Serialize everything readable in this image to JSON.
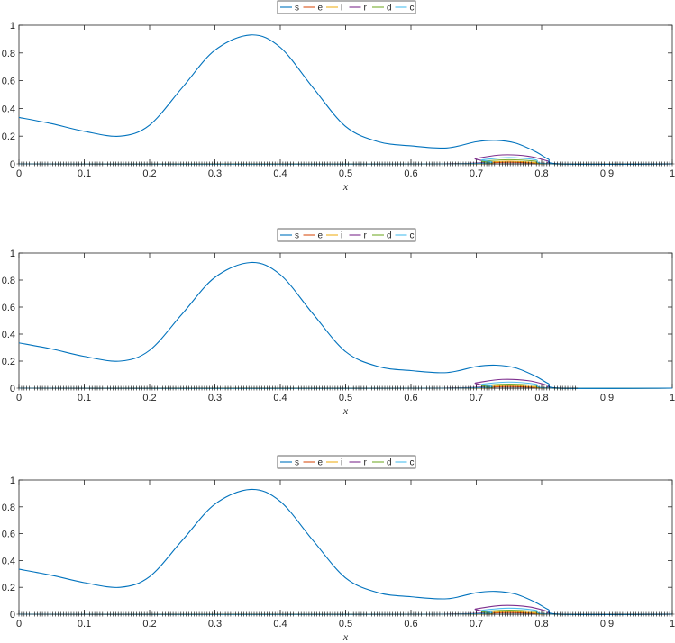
{
  "chart_data": [
    {
      "type": "line",
      "title": "",
      "xlabel": "x",
      "ylabel": "",
      "xlim": [
        0,
        1
      ],
      "ylim": [
        0,
        1
      ],
      "xticks": [
        "0",
        "0.1",
        "0.2",
        "0.3",
        "0.4",
        "0.5",
        "0.6",
        "0.7",
        "0.8",
        "0.9",
        "1"
      ],
      "yticks": [
        "0",
        "0.2",
        "0.4",
        "0.6",
        "0.8",
        "1"
      ],
      "grid": false,
      "legend_position": "top-center",
      "legend_orientation": "horizontal",
      "node_marker_range": [
        0,
        1
      ],
      "series": [
        {
          "name": "s",
          "color": "#0072BD",
          "x": [
            0,
            0.05,
            0.1,
            0.155,
            0.2,
            0.25,
            0.3,
            0.355,
            0.4,
            0.45,
            0.5,
            0.55,
            0.6,
            0.655,
            0.7,
            0.73,
            0.76,
            0.79,
            0.81,
            0.83,
            1.0
          ],
          "y": [
            0.335,
            0.29,
            0.235,
            0.2,
            0.28,
            0.55,
            0.82,
            0.93,
            0.84,
            0.55,
            0.27,
            0.16,
            0.13,
            0.115,
            0.16,
            0.17,
            0.15,
            0.09,
            0.035,
            0.0,
            0.0
          ]
        },
        {
          "name": "e",
          "color": "#D95319",
          "x": [
            0,
            0.65,
            0.7,
            0.75,
            0.8,
            0.82,
            1.0
          ],
          "y": [
            0,
            0,
            0.005,
            0.012,
            0.005,
            0,
            0
          ]
        },
        {
          "name": "i",
          "color": "#EDB120",
          "x": [
            0,
            0.66,
            0.71,
            0.75,
            0.79,
            0.81,
            1.0
          ],
          "y": [
            0,
            0,
            0.01,
            0.02,
            0.01,
            0,
            0
          ]
        },
        {
          "name": "r",
          "color": "#7E2F8E",
          "x": [
            0,
            0.65,
            0.7,
            0.74,
            0.78,
            0.81,
            0.825,
            1.0
          ],
          "y": [
            0,
            0,
            0.04,
            0.065,
            0.055,
            0.02,
            0,
            0
          ]
        },
        {
          "name": "d",
          "color": "#77AC30",
          "x": [
            0,
            0.66,
            0.71,
            0.75,
            0.79,
            0.815,
            1.0
          ],
          "y": [
            0,
            0,
            0.02,
            0.03,
            0.02,
            0,
            0
          ]
        },
        {
          "name": "c",
          "color": "#4DBEEE",
          "x": [
            0,
            0.66,
            0.71,
            0.75,
            0.79,
            0.815,
            1.0
          ],
          "y": [
            0,
            0,
            0.03,
            0.045,
            0.03,
            0,
            0
          ]
        }
      ]
    },
    {
      "type": "line",
      "title": "",
      "xlabel": "x",
      "ylabel": "",
      "xlim": [
        0,
        1
      ],
      "ylim": [
        0,
        1
      ],
      "xticks": [
        "0",
        "0.1",
        "0.2",
        "0.3",
        "0.4",
        "0.5",
        "0.6",
        "0.7",
        "0.8",
        "0.9",
        "1"
      ],
      "yticks": [
        "0",
        "0.2",
        "0.4",
        "0.6",
        "0.8",
        "1"
      ],
      "grid": false,
      "legend_position": "top-center",
      "legend_orientation": "horizontal",
      "node_marker_range": [
        0,
        0.855
      ],
      "series": [
        {
          "name": "s",
          "color": "#0072BD",
          "x": [
            0,
            0.05,
            0.1,
            0.155,
            0.2,
            0.25,
            0.3,
            0.355,
            0.4,
            0.45,
            0.5,
            0.55,
            0.6,
            0.655,
            0.7,
            0.73,
            0.76,
            0.79,
            0.81,
            0.83,
            1.0
          ],
          "y": [
            0.335,
            0.29,
            0.235,
            0.2,
            0.28,
            0.55,
            0.82,
            0.93,
            0.84,
            0.55,
            0.27,
            0.16,
            0.13,
            0.115,
            0.16,
            0.17,
            0.15,
            0.09,
            0.035,
            0.0,
            0.0
          ]
        },
        {
          "name": "e",
          "color": "#D95319",
          "x": [
            0,
            0.65,
            0.7,
            0.75,
            0.8,
            0.82,
            1.0
          ],
          "y": [
            0,
            0,
            0.005,
            0.012,
            0.005,
            0,
            0
          ]
        },
        {
          "name": "i",
          "color": "#EDB120",
          "x": [
            0,
            0.66,
            0.71,
            0.75,
            0.79,
            0.81,
            1.0
          ],
          "y": [
            0,
            0,
            0.01,
            0.02,
            0.01,
            0,
            0
          ]
        },
        {
          "name": "r",
          "color": "#7E2F8E",
          "x": [
            0,
            0.65,
            0.7,
            0.74,
            0.78,
            0.81,
            0.825,
            1.0
          ],
          "y": [
            0,
            0,
            0.04,
            0.065,
            0.055,
            0.02,
            0,
            0
          ]
        },
        {
          "name": "d",
          "color": "#77AC30",
          "x": [
            0,
            0.66,
            0.71,
            0.75,
            0.79,
            0.815,
            1.0
          ],
          "y": [
            0,
            0,
            0.02,
            0.03,
            0.02,
            0,
            0
          ]
        },
        {
          "name": "c",
          "color": "#4DBEEE",
          "x": [
            0,
            0.66,
            0.71,
            0.75,
            0.79,
            0.815,
            1.0
          ],
          "y": [
            0,
            0,
            0.03,
            0.045,
            0.03,
            0,
            0
          ]
        }
      ]
    },
    {
      "type": "line",
      "title": "",
      "xlabel": "x",
      "ylabel": "",
      "xlim": [
        0,
        1
      ],
      "ylim": [
        0,
        1
      ],
      "xticks": [
        "0",
        "0.1",
        "0.2",
        "0.3",
        "0.4",
        "0.5",
        "0.6",
        "0.7",
        "0.8",
        "0.9",
        "1"
      ],
      "yticks": [
        "0",
        "0.2",
        "0.4",
        "0.6",
        "0.8",
        "1"
      ],
      "grid": false,
      "legend_position": "top-center",
      "legend_orientation": "horizontal",
      "node_marker_range": [
        0,
        1
      ],
      "series": [
        {
          "name": "s",
          "color": "#0072BD",
          "x": [
            0,
            0.05,
            0.1,
            0.155,
            0.2,
            0.25,
            0.3,
            0.355,
            0.4,
            0.45,
            0.5,
            0.55,
            0.6,
            0.655,
            0.7,
            0.73,
            0.76,
            0.79,
            0.81,
            0.83,
            1.0
          ],
          "y": [
            0.335,
            0.29,
            0.235,
            0.2,
            0.28,
            0.55,
            0.82,
            0.93,
            0.84,
            0.55,
            0.27,
            0.16,
            0.13,
            0.115,
            0.16,
            0.17,
            0.15,
            0.09,
            0.035,
            0.0,
            0.0
          ]
        },
        {
          "name": "e",
          "color": "#D95319",
          "x": [
            0,
            0.65,
            0.7,
            0.75,
            0.8,
            0.82,
            1.0
          ],
          "y": [
            0,
            0,
            0.005,
            0.012,
            0.005,
            0,
            0
          ]
        },
        {
          "name": "i",
          "color": "#EDB120",
          "x": [
            0,
            0.66,
            0.71,
            0.75,
            0.79,
            0.81,
            1.0
          ],
          "y": [
            0,
            0,
            0.01,
            0.02,
            0.01,
            0,
            0
          ]
        },
        {
          "name": "r",
          "color": "#7E2F8E",
          "x": [
            0,
            0.65,
            0.7,
            0.74,
            0.78,
            0.81,
            0.825,
            1.0
          ],
          "y": [
            0,
            0,
            0.04,
            0.065,
            0.055,
            0.02,
            0,
            0
          ]
        },
        {
          "name": "d",
          "color": "#77AC30",
          "x": [
            0,
            0.66,
            0.71,
            0.75,
            0.79,
            0.815,
            1.0
          ],
          "y": [
            0,
            0,
            0.02,
            0.03,
            0.02,
            0,
            0
          ]
        },
        {
          "name": "c",
          "color": "#4DBEEE",
          "x": [
            0,
            0.66,
            0.71,
            0.75,
            0.79,
            0.815,
            1.0
          ],
          "y": [
            0,
            0,
            0.03,
            0.045,
            0.03,
            0,
            0
          ]
        }
      ]
    }
  ]
}
